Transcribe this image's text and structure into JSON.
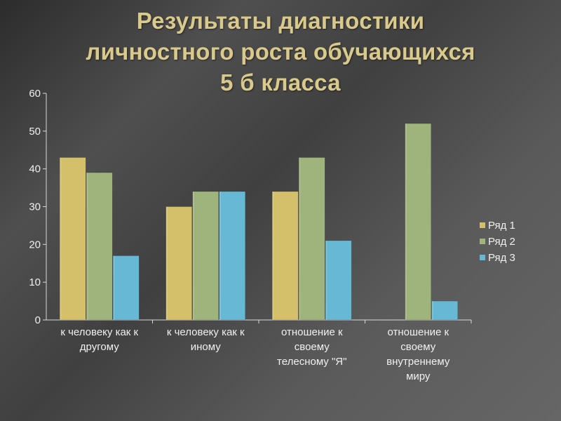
{
  "title_lines": [
    "Результаты диагностики",
    "личностного роста обучающихся",
    "5 б класса"
  ],
  "chart_data": {
    "type": "bar",
    "categories": [
      [
        "к человеку как к",
        "другому"
      ],
      [
        "к человеку как к",
        "иному"
      ],
      [
        "отношение к",
        "своему",
        "телесному \"Я\""
      ],
      [
        "отношение к",
        "своему",
        "внутреннему",
        "миру"
      ]
    ],
    "series": [
      {
        "name": "Ряд 1",
        "color": "#d4bf6a",
        "values": [
          43,
          30,
          34,
          null
        ]
      },
      {
        "name": "Ряд 2",
        "color": "#9fb37c",
        "values": [
          39,
          34,
          43,
          52
        ]
      },
      {
        "name": "Ряд 3",
        "color": "#66b8d4",
        "values": [
          17,
          34,
          21,
          5
        ]
      }
    ],
    "ylim": [
      0,
      60
    ],
    "yticks": [
      0,
      10,
      20,
      30,
      40,
      50,
      60
    ],
    "legend": "right",
    "grid": false
  }
}
